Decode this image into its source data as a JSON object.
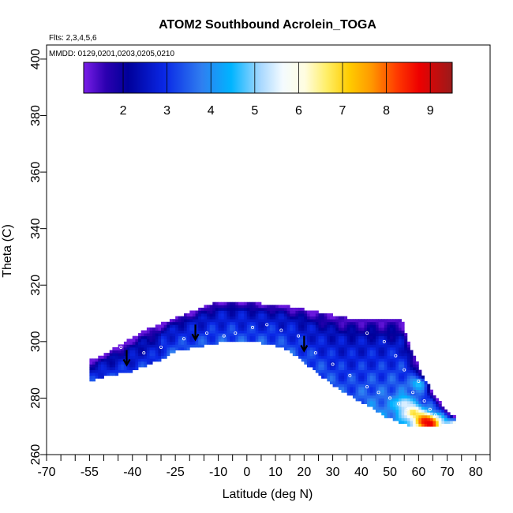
{
  "chart_data": {
    "type": "heatmap",
    "title": "ATOM2 Southbound Acrolein_TOGA",
    "flights_note": "Flts: 2,3,4,5,6",
    "dates_note": "MMDD: 0129,0201,0203,0205,0210",
    "xlabel": "Latitude (deg N)",
    "ylabel": "Theta (C)",
    "xlim": [
      -70,
      85
    ],
    "ylim": [
      260,
      405
    ],
    "xticks": [
      -70,
      -55,
      -40,
      -25,
      -10,
      0,
      10,
      20,
      30,
      40,
      50,
      60,
      70,
      80
    ],
    "yticks": [
      260,
      280,
      300,
      320,
      340,
      360,
      380,
      400
    ],
    "colorbar": {
      "ticks": [
        2,
        3,
        4,
        5,
        6,
        7,
        8,
        9
      ],
      "range": [
        1.1,
        9.5
      ]
    },
    "upper_boundary": [
      [
        -55,
        293
      ],
      [
        -50,
        295
      ],
      [
        -45,
        298
      ],
      [
        -40,
        301
      ],
      [
        -35,
        304
      ],
      [
        -30,
        306
      ],
      [
        -25,
        308
      ],
      [
        -20,
        310
      ],
      [
        -15,
        312
      ],
      [
        -10,
        314
      ],
      [
        -5,
        314
      ],
      [
        0,
        314
      ],
      [
        5,
        313
      ],
      [
        10,
        313
      ],
      [
        15,
        312
      ],
      [
        20,
        311
      ],
      [
        25,
        310
      ],
      [
        30,
        309
      ],
      [
        35,
        308
      ],
      [
        40,
        308
      ],
      [
        45,
        308
      ],
      [
        50,
        308
      ],
      [
        54,
        308
      ],
      [
        57,
        298
      ],
      [
        60,
        291
      ],
      [
        63,
        285
      ],
      [
        66,
        280
      ],
      [
        70,
        275
      ],
      [
        73,
        273
      ]
    ],
    "lower_boundary": [
      [
        73,
        272
      ],
      [
        68,
        271
      ],
      [
        63,
        270
      ],
      [
        58,
        270
      ],
      [
        53,
        272
      ],
      [
        48,
        274
      ],
      [
        44,
        277
      ],
      [
        40,
        279
      ],
      [
        35,
        282
      ],
      [
        30,
        285
      ],
      [
        25,
        289
      ],
      [
        20,
        293
      ],
      [
        15,
        297
      ],
      [
        10,
        299
      ],
      [
        5,
        300
      ],
      [
        0,
        300
      ],
      [
        -5,
        301
      ],
      [
        -10,
        300
      ],
      [
        -15,
        299
      ],
      [
        -20,
        298
      ],
      [
        -25,
        297
      ],
      [
        -30,
        294
      ],
      [
        -35,
        292
      ],
      [
        -40,
        290
      ],
      [
        -45,
        289
      ],
      [
        -50,
        288
      ],
      [
        -55,
        286
      ]
    ],
    "hotspots": [
      {
        "lat": 58,
        "theta": 275,
        "value": 6.8
      },
      {
        "lat": 62,
        "theta": 272,
        "value": 8.3
      },
      {
        "lat": 64,
        "theta": 271,
        "value": 8.8
      },
      {
        "lat": 55,
        "theta": 278,
        "value": 5.5
      },
      {
        "lat": 60,
        "theta": 285,
        "value": 4.6
      }
    ],
    "arrows": [
      {
        "lat": -42,
        "theta": 292
      },
      {
        "lat": -18,
        "theta": 301
      },
      {
        "lat": 20,
        "theta": 297
      }
    ],
    "sample_points": [
      [
        -44,
        298
      ],
      [
        -36,
        296
      ],
      [
        -30,
        298
      ],
      [
        -22,
        301
      ],
      [
        -14,
        303
      ],
      [
        -8,
        302
      ],
      [
        -4,
        303
      ],
      [
        2,
        305
      ],
      [
        7,
        306
      ],
      [
        12,
        304
      ],
      [
        18,
        302
      ],
      [
        24,
        296
      ],
      [
        30,
        292
      ],
      [
        36,
        288
      ],
      [
        42,
        284
      ],
      [
        46,
        282
      ],
      [
        50,
        280
      ],
      [
        53,
        278
      ],
      [
        56,
        276
      ],
      [
        58,
        282
      ],
      [
        60,
        286
      ],
      [
        62,
        279
      ],
      [
        64,
        276
      ],
      [
        66,
        274
      ],
      [
        55,
        290
      ],
      [
        52,
        295
      ],
      [
        48,
        300
      ],
      [
        42,
        303
      ]
    ]
  }
}
